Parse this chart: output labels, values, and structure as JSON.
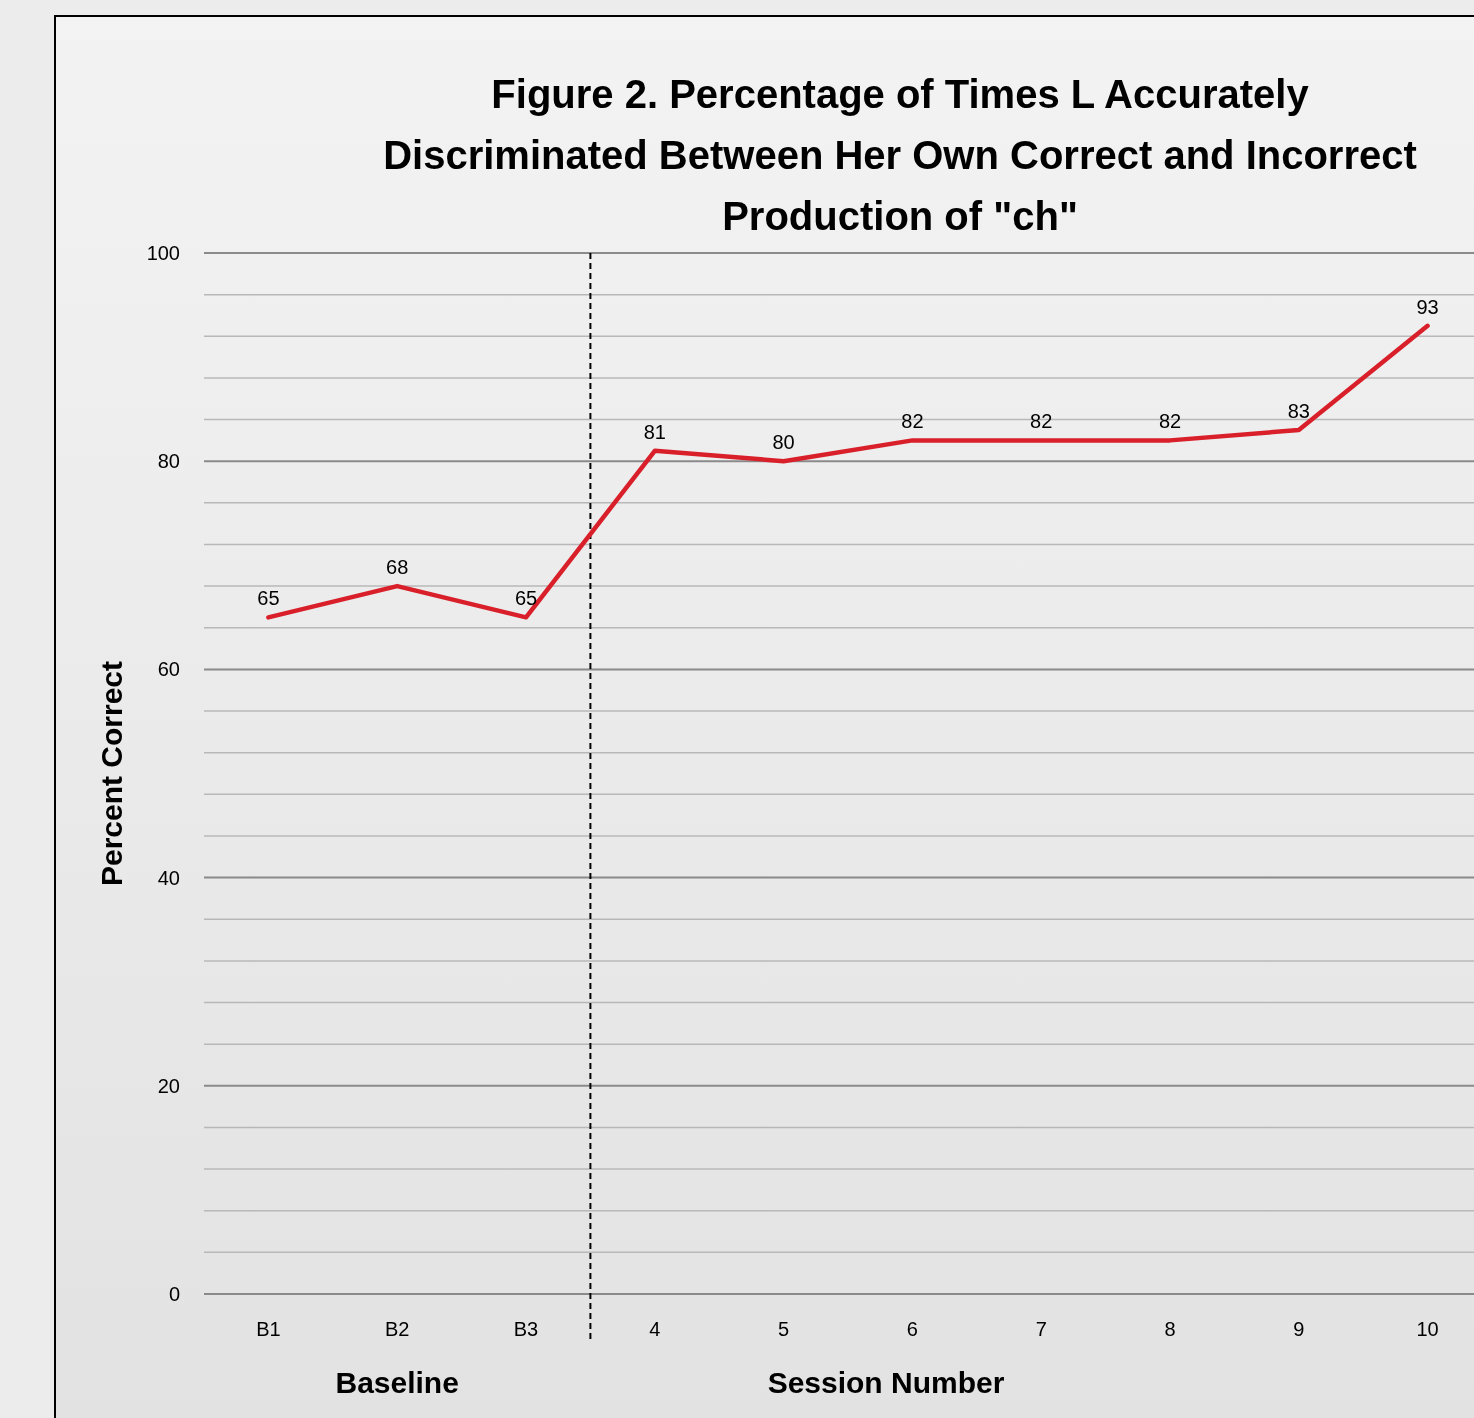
{
  "chart_data": {
    "type": "line",
    "title": "Figure 2. Percentage of Times L Accurately\nDiscriminated Between Her Own Correct and Incorrect\nProduction of \"ch\"",
    "ylabel": "Percent Correct",
    "xlabel": "Session Number",
    "annotations": [
      "Baseline"
    ],
    "categories": [
      "B1",
      "B2",
      "B3",
      "4",
      "5",
      "6",
      "7",
      "8",
      "9",
      "10"
    ],
    "series": [
      {
        "color": "#d9202a",
        "values": [
          65,
          68,
          65,
          81,
          80,
          82,
          82,
          82,
          83,
          93
        ]
      }
    ],
    "ylim": [
      0,
      100
    ],
    "yticks": [
      0,
      {
        "value": 4,
        "label": null
      },
      {
        "value": 8,
        "label": null
      },
      {
        "value": 12,
        "label": null
      },
      {
        "value": 16,
        "label": null
      },
      20,
      {
        "value": 24,
        "label": null
      },
      {
        "value": 28,
        "label": null
      },
      {
        "value": 32,
        "label": null
      },
      {
        "value": 36,
        "label": null
      },
      40,
      {
        "value": 44,
        "label": null
      },
      {
        "value": 48,
        "label": null
      },
      {
        "value": 52,
        "label": null
      },
      {
        "value": 56,
        "label": null
      },
      60,
      {
        "value": 64,
        "label": null
      },
      {
        "value": 68,
        "label": null
      },
      {
        "value": 72,
        "label": null
      },
      {
        "value": 76,
        "label": null
      },
      80,
      {
        "value": 84,
        "label": null
      },
      {
        "value": 88,
        "label": null
      },
      {
        "value": 92,
        "label": null
      },
      {
        "value": 96,
        "label": null
      },
      100
    ],
    "grid": "y",
    "data_labels": true,
    "marker": "none",
    "line_style": "solid"
  }
}
